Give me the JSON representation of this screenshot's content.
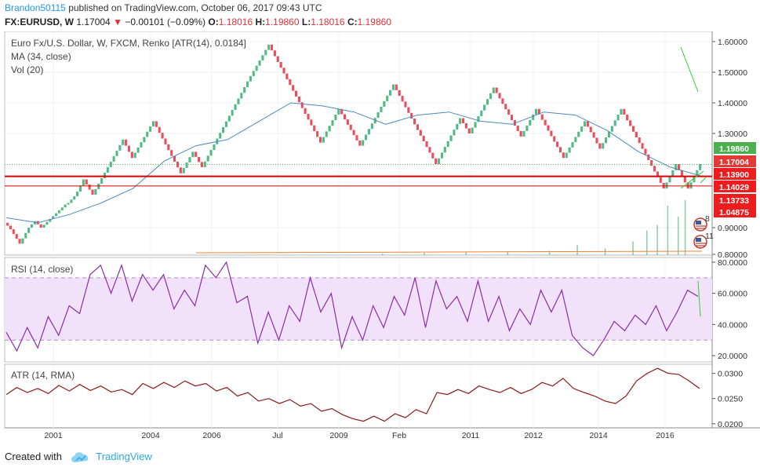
{
  "header": {
    "user": "Brandon50115",
    "published_text": "published on TradingView.com, October 06, 2017 09:43 UTC",
    "symbol": "FX:EURUSD, W",
    "last": "1.17004",
    "change_arrow": "▼",
    "change": "−0.00101 (−0.09%)",
    "o_label": "O:",
    "o_value": "1.18016",
    "h_label": "H:",
    "h_value": "1.19860",
    "l_label": "L:",
    "l_value": "1.18016",
    "c_label": "C:",
    "c_value": "1.19860"
  },
  "legend": {
    "main": "Euro Fx/U.S. Dollar, W, FXCM, Renko [ATR(14), 0.0184]",
    "ma": "MA (34, close)",
    "vol": "Vol (20)",
    "rsi": "RSI (14, close)",
    "atr": "ATR (14, RMA)"
  },
  "footer": {
    "created_with": "Created with",
    "brand": "TradingView",
    "logo_icon": "tradingview-cloud-icon"
  },
  "colors": {
    "up": "#53b987",
    "down": "#eb4d5c",
    "ma": "#4a8ab8",
    "rsi": "#8a2ea8",
    "atr": "#8b1a1a",
    "hline": "#d50000",
    "green_line": "#33cc33",
    "axis": "#555555"
  },
  "badges": [
    {
      "value": "1.19860",
      "color": "#4caf50"
    },
    {
      "value": "1.17004",
      "color": "#e53935"
    },
    {
      "value": "1.13900",
      "color": "#ee1c1c"
    },
    {
      "value": "1.14029",
      "color": "#ee1c1c"
    },
    {
      "value": "1.13733",
      "color": "#ee1c1c"
    },
    {
      "value": "1.04875",
      "color": "#ee1c1c"
    }
  ],
  "events": [
    {
      "count": "8",
      "icon": "flag-us-icon"
    },
    {
      "count": "11",
      "icon": "flag-us-icon"
    }
  ],
  "chart_data": [
    {
      "type": "renko",
      "symbol": "EURUSD",
      "y_ticks": [
        "1.60000",
        "1.50000",
        "1.40000",
        "1.30000",
        "0.90000",
        "0.80000"
      ],
      "ylim": [
        0.8,
        1.62
      ],
      "x_ticks": [
        "2001",
        "2004",
        "2006",
        "Jul",
        "2009",
        "Feb",
        "2011",
        "2012",
        "2014",
        "2016"
      ],
      "box_size": 0.0184,
      "close_path": [
        0.93,
        0.84,
        0.94,
        0.9,
        1.04,
        1.05,
        1.15,
        1.1,
        1.28,
        1.22,
        1.34,
        1.17,
        1.24,
        1.19,
        1.47,
        1.59,
        1.27,
        1.38,
        1.26,
        1.46,
        1.2,
        1.35,
        1.3,
        1.45,
        1.29,
        1.38,
        1.22,
        1.34,
        1.25,
        1.38,
        1.12,
        1.2,
        1.12,
        1.14,
        1.2
      ],
      "ma_path": [
        0.96,
        0.93,
        0.98,
        1.05,
        1.12,
        1.21,
        1.26,
        1.28,
        1.34,
        1.4,
        1.39,
        1.37,
        1.33,
        1.36,
        1.37,
        1.34,
        1.33,
        1.37,
        1.36,
        1.31,
        1.24,
        1.19,
        1.16
      ],
      "volume": [
        {
          "pos": 0.54,
          "v": 0.03
        },
        {
          "pos": 0.6,
          "v": 0.04
        },
        {
          "pos": 0.66,
          "v": 0.05
        },
        {
          "pos": 0.72,
          "v": 0.06
        },
        {
          "pos": 0.78,
          "v": 0.08
        },
        {
          "pos": 0.82,
          "v": 0.18
        },
        {
          "pos": 0.86,
          "v": 0.12
        },
        {
          "pos": 0.9,
          "v": 0.25
        },
        {
          "pos": 0.92,
          "v": 0.45
        },
        {
          "pos": 0.935,
          "v": 0.55
        },
        {
          "pos": 0.95,
          "v": 0.9
        },
        {
          "pos": 0.965,
          "v": 0.7
        },
        {
          "pos": 0.975,
          "v": 1.0
        }
      ],
      "hlines": [
        1.16,
        1.1285
      ],
      "dotted_level": 1.1986
    },
    {
      "type": "line",
      "name": "RSI (14, close)",
      "y_ticks": [
        "80.0000",
        "60.0000",
        "40.0000",
        "20.0000"
      ],
      "ylim": [
        17,
        82
      ],
      "band": [
        70,
        30
      ],
      "values": [
        35,
        23,
        38,
        25,
        45,
        33,
        52,
        47,
        72,
        78,
        60,
        78,
        55,
        72,
        62,
        72,
        50,
        62,
        52,
        78,
        70,
        80,
        54,
        58,
        28,
        48,
        30,
        52,
        42,
        70,
        48,
        60,
        25,
        45,
        30,
        52,
        38,
        58,
        46,
        70,
        38,
        68,
        50,
        58,
        42,
        68,
        42,
        58,
        36,
        50,
        40,
        62,
        48,
        62,
        33,
        25,
        20,
        30,
        42,
        36,
        46,
        40,
        52,
        36,
        48,
        62,
        58
      ]
    },
    {
      "type": "line",
      "name": "ATR (14, RMA)",
      "y_ticks": [
        "0.0300",
        "0.0250",
        "0.0200"
      ],
      "ylim": [
        0.0195,
        0.0315
      ],
      "values": [
        0.0258,
        0.0272,
        0.0262,
        0.027,
        0.026,
        0.0276,
        0.0265,
        0.0278,
        0.0266,
        0.0275,
        0.0263,
        0.0268,
        0.0258,
        0.028,
        0.027,
        0.0282,
        0.0272,
        0.0285,
        0.0275,
        0.028,
        0.0265,
        0.0272,
        0.0255,
        0.0262,
        0.0245,
        0.025,
        0.024,
        0.0248,
        0.0235,
        0.024,
        0.0225,
        0.023,
        0.0218,
        0.021,
        0.0205,
        0.0215,
        0.0205,
        0.022,
        0.0212,
        0.0228,
        0.022,
        0.0262,
        0.0258,
        0.0268,
        0.026,
        0.0275,
        0.0268,
        0.0262,
        0.0272,
        0.026,
        0.0268,
        0.0282,
        0.0275,
        0.029,
        0.027,
        0.0262,
        0.0255,
        0.0245,
        0.024,
        0.0255,
        0.0285,
        0.03,
        0.031,
        0.03,
        0.0298,
        0.0285,
        0.027
      ]
    }
  ]
}
